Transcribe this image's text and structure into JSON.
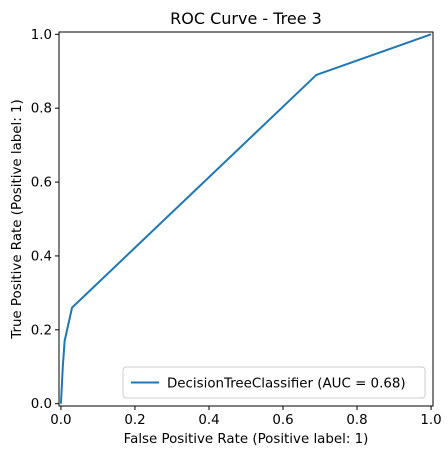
{
  "chart_data": {
    "type": "line",
    "title": "ROC Curve - Tree 3",
    "xlabel": "False Positive Rate (Positive label: 1)",
    "ylabel": "True Positive Rate (Positive label: 1)",
    "xlim": [
      0,
      1
    ],
    "ylim": [
      0,
      1
    ],
    "x_ticks": [
      0.0,
      0.2,
      0.4,
      0.6,
      0.8,
      1.0
    ],
    "y_ticks": [
      0.0,
      0.2,
      0.4,
      0.6,
      0.8,
      1.0
    ],
    "x_tick_labels": [
      "0.0",
      "0.2",
      "0.4",
      "0.6",
      "0.8",
      "1.0"
    ],
    "y_tick_labels": [
      "0.0",
      "0.2",
      "0.4",
      "0.6",
      "0.8",
      "1.0"
    ],
    "grid": false,
    "legend_position": "lower-right",
    "series": [
      {
        "name": "DecisionTreeClassifier (AUC = 0.68)",
        "color": "#1f77b4",
        "x": [
          0.0,
          0.005,
          0.01,
          0.03,
          0.69,
          1.0
        ],
        "y": [
          0.0,
          0.1,
          0.17,
          0.26,
          0.89,
          1.0
        ]
      }
    ]
  }
}
